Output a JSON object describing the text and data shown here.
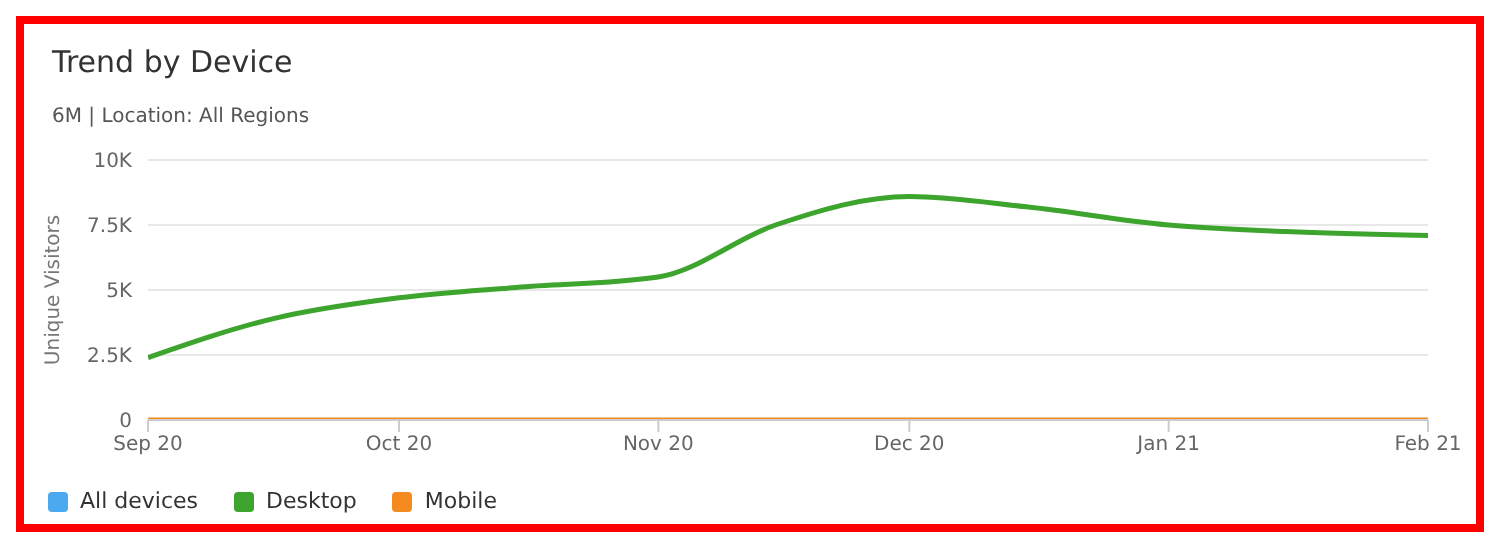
{
  "chart_data": {
    "type": "line",
    "title": "Trend by Device",
    "subtitle": "6M | Location: All Regions",
    "ylabel": "Unique Visitors",
    "x": [
      "2020-09-01",
      "2020-09-16",
      "2020-10-01",
      "2020-10-15",
      "2020-11-01",
      "2020-11-15",
      "2020-12-01",
      "2020-12-15",
      "2021-01-01",
      "2021-01-15",
      "2021-02-01"
    ],
    "series": [
      {
        "name": "All devices",
        "color": "#4ba9f0",
        "values": [
          null,
          null,
          null,
          null,
          null,
          null,
          null,
          null,
          null,
          null,
          null
        ]
      },
      {
        "name": "Desktop",
        "color": "#3da42d",
        "values": [
          2400,
          3900,
          4700,
          5100,
          5500,
          7500,
          8600,
          8200,
          7500,
          7250,
          7100
        ]
      },
      {
        "name": "Mobile",
        "color": "#f58a1f",
        "values": [
          0,
          0,
          0,
          0,
          0,
          0,
          0,
          0,
          0,
          0,
          0
        ]
      }
    ],
    "xlim": [
      "2020-09-01",
      "2021-02-01"
    ],
    "xticks": [
      {
        "value": "2020-09-01",
        "label": "Sep 20"
      },
      {
        "value": "2020-10-01",
        "label": "Oct 20"
      },
      {
        "value": "2020-11-01",
        "label": "Nov 20"
      },
      {
        "value": "2020-12-01",
        "label": "Dec 20"
      },
      {
        "value": "2021-01-01",
        "label": "Jan 21"
      },
      {
        "value": "2021-02-01",
        "label": "Feb 21"
      }
    ],
    "ylim": [
      0,
      10000
    ],
    "yticks": [
      {
        "value": 0,
        "label": "0"
      },
      {
        "value": 2500,
        "label": "2.5K"
      },
      {
        "value": 5000,
        "label": "5K"
      },
      {
        "value": 7500,
        "label": "7.5K"
      },
      {
        "value": 10000,
        "label": "10K"
      }
    ],
    "grid": "y",
    "legend": "bottom left",
    "marker": "none",
    "line_style": "solid"
  }
}
